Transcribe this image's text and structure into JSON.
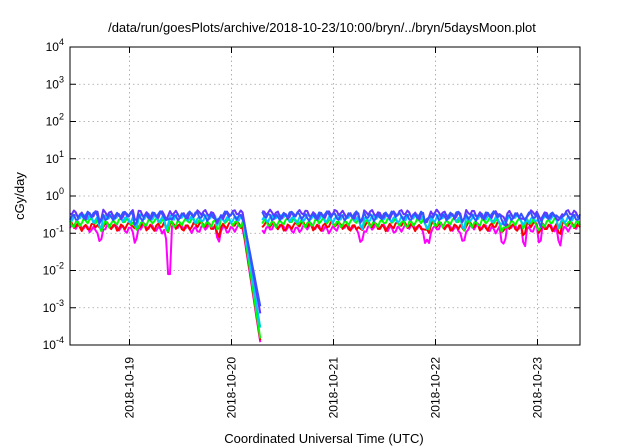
{
  "chart_data": {
    "type": "line",
    "title": "/data/run/goesPlots/archive/2018-10-23/10:00/bryn/../bryn/5daysMoon.plot",
    "xlabel": "Coordinated Universal Time (UTC)",
    "ylabel": "cGy/day",
    "yscale": "log",
    "ylim": [
      0.0001,
      10000
    ],
    "yticks": [
      {
        "value": 0.0001,
        "base": "10",
        "exp": "-4"
      },
      {
        "value": 0.001,
        "base": "10",
        "exp": "-3"
      },
      {
        "value": 0.01,
        "base": "10",
        "exp": "-2"
      },
      {
        "value": 0.1,
        "base": "10",
        "exp": "-1"
      },
      {
        "value": 1,
        "base": "10",
        "exp": "0"
      },
      {
        "value": 10,
        "base": "10",
        "exp": "1"
      },
      {
        "value": 100,
        "base": "10",
        "exp": "2"
      },
      {
        "value": 1000,
        "base": "10",
        "exp": "3"
      },
      {
        "value": 10000,
        "base": "10",
        "exp": "4"
      }
    ],
    "xlim": [
      "2018-10-18T10:00",
      "2018-10-23T10:00"
    ],
    "xticks": [
      "2018-10-19",
      "2018-10-20",
      "2018-10-21",
      "2018-10-22",
      "2018-10-23"
    ],
    "grid": true,
    "gap": [
      "2018-10-20T02:40",
      "2018-10-20T07:00"
    ],
    "series": [
      {
        "color": "#ff00ff",
        "base": 0.14,
        "dropMin": 8e-05
      },
      {
        "color": "#ff0000",
        "base": 0.16,
        "dropMin": 9e-05
      },
      {
        "color": "#00ff00",
        "base": 0.2,
        "dropMin": 0.0001
      },
      {
        "color": "#00c8ff",
        "base": 0.26,
        "dropMin": 0.0002
      },
      {
        "color": "#6633ff",
        "base": 0.33,
        "dropMin": 0.0005
      },
      {
        "color": "#3355ff",
        "base": 0.3,
        "dropMin": 0.0008
      }
    ]
  }
}
